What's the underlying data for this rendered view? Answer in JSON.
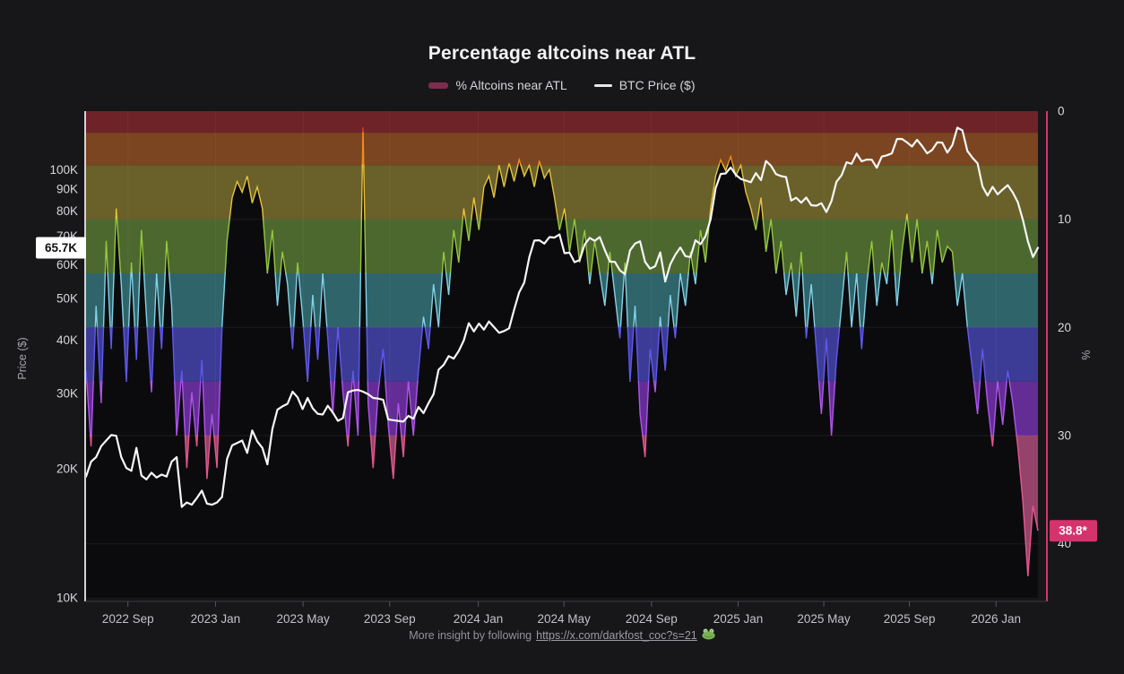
{
  "title": "Percentage altcoins near ATL",
  "legend": [
    {
      "label": "% Altcoins near ATL",
      "swatch_color": "#7e2d4e"
    },
    {
      "label": "BTC Price ($)",
      "swatch_color": "#e8e8ea"
    }
  ],
  "footer": {
    "prefix": "More insight by following",
    "link_text": "https://x.com/darkfost_coc?s=21",
    "emoji": "frog"
  },
  "axes": {
    "left": {
      "title": "Price ($)",
      "scale": "log",
      "ticks": [
        {
          "label": "100K",
          "value": 100
        },
        {
          "label": "90K",
          "value": 90
        },
        {
          "label": "80K",
          "value": 80
        },
        {
          "label": "70K",
          "value": 70
        },
        {
          "label": "60K",
          "value": 60
        },
        {
          "label": "50K",
          "value": 50
        },
        {
          "label": "40K",
          "value": 40
        },
        {
          "label": "30K",
          "value": 30
        },
        {
          "label": "20K",
          "value": 20
        },
        {
          "label": "10K",
          "value": 10
        }
      ],
      "current": {
        "label": "65.7K",
        "value": 65.7
      }
    },
    "right": {
      "title": "%",
      "inverted": true,
      "ticks": [
        {
          "label": "0",
          "value": 0
        },
        {
          "label": "10",
          "value": 10
        },
        {
          "label": "20",
          "value": 20
        },
        {
          "label": "30",
          "value": 30
        },
        {
          "label": "40",
          "value": 40
        }
      ],
      "current": {
        "label": "38.8*",
        "value": 38.8
      }
    }
  },
  "colors": {
    "page_bg": "#17171a",
    "area_fill": "#0b0b0e",
    "btc_line": "#f7f7f7",
    "accent_pink": "#d6336c",
    "left_axis_line": "#d2d2d7",
    "bottom_axis_line": "#3a3a40",
    "grid": "rgba(255,255,255,0.07)",
    "vgrid": "rgba(255,255,255,0.045)",
    "current_price_box_bg": "#ffffff",
    "current_price_box_text": "#111114",
    "current_pct_box_text": "#ffffff"
  },
  "chart_data": {
    "type": "area+line",
    "x_start": "2022 Jul",
    "x_end": "2026 Feb",
    "resolution": "weekly (approximate)",
    "x_ticks": [
      {
        "label": "2022 Sep",
        "pos": 0.044
      },
      {
        "label": "2023 Jan",
        "pos": 0.136
      },
      {
        "label": "2023 May",
        "pos": 0.228
      },
      {
        "label": "2023 Sep",
        "pos": 0.319
      },
      {
        "label": "2024 Jan",
        "pos": 0.412
      },
      {
        "label": "2024 May",
        "pos": 0.502
      },
      {
        "label": "2024 Sep",
        "pos": 0.594
      },
      {
        "label": "2025 Jan",
        "pos": 0.685
      },
      {
        "label": "2025 May",
        "pos": 0.775
      },
      {
        "label": "2025 Sep",
        "pos": 0.865
      },
      {
        "label": "2026 Jan",
        "pos": 0.956
      }
    ],
    "right_axis_range_pct": [
      0,
      45
    ],
    "left_axis_range_usd_k": [
      10,
      137
    ],
    "bands_pct": [
      {
        "name": "red",
        "from": 0,
        "to": 2,
        "fill": "#6e2329",
        "stroke": "#e03a3a"
      },
      {
        "name": "orange",
        "from": 2,
        "to": 5,
        "fill": "#7a4520",
        "stroke": "#f08c1e"
      },
      {
        "name": "olive",
        "from": 5,
        "to": 10,
        "fill": "#6a602a",
        "stroke": "#e5c33c"
      },
      {
        "name": "green",
        "from": 10,
        "to": 15,
        "fill": "#4c682e",
        "stroke": "#96c83c"
      },
      {
        "name": "teal",
        "from": 15,
        "to": 20,
        "fill": "#2f646a",
        "stroke": "#82d2e6"
      },
      {
        "name": "indigo",
        "from": 20,
        "to": 25,
        "fill": "#3c3c96",
        "stroke": "#6058f0"
      },
      {
        "name": "purple",
        "from": 25,
        "to": 30,
        "fill": "#642d96",
        "stroke": "#b054ee"
      },
      {
        "name": "magenta",
        "from": 30,
        "to": 45,
        "fill": "#95436a",
        "stroke": "#e6568e"
      }
    ],
    "series": [
      {
        "name": "% Altcoins near ATL",
        "axis": "right",
        "unit": "%",
        "current": 38.8,
        "values": [
          24,
          31,
          18,
          27,
          12,
          22,
          9,
          16,
          25,
          14,
          23,
          11,
          19,
          26,
          15,
          22,
          12,
          18,
          30,
          24,
          33,
          26,
          31,
          23,
          34,
          28,
          33,
          20,
          12,
          8,
          6.5,
          7.5,
          6,
          8.5,
          7,
          9,
          15,
          11,
          18,
          13,
          16,
          22,
          14,
          19,
          25,
          17,
          23,
          15,
          21,
          28,
          20,
          26,
          31,
          24,
          30,
          1.5,
          27,
          33,
          26,
          22,
          29,
          34,
          27,
          32,
          25,
          30,
          24,
          19,
          22,
          16,
          20,
          13,
          17,
          11,
          14,
          9,
          12,
          8,
          11,
          7,
          6,
          8,
          5,
          7,
          4.8,
          6.5,
          4.5,
          6,
          5,
          7,
          4.6,
          6.2,
          5.4,
          8,
          11,
          9,
          13,
          10,
          14,
          11,
          16,
          12,
          15,
          18,
          13,
          17,
          21,
          14,
          25,
          18,
          28,
          32,
          22,
          26,
          19,
          24,
          17,
          21,
          15,
          18,
          13,
          16,
          11,
          14,
          9,
          6,
          4.5,
          5.5,
          4.2,
          6,
          5,
          7.5,
          9,
          11,
          8,
          13,
          10,
          15,
          12,
          17,
          14,
          19,
          13,
          21,
          16,
          22,
          28,
          21,
          30,
          23,
          18,
          13,
          20,
          15,
          22,
          16,
          12,
          18,
          14,
          16,
          11,
          18,
          13,
          9.5,
          14,
          10,
          15,
          12,
          16,
          11,
          14,
          12.5,
          13,
          18,
          15,
          20,
          24,
          28,
          22,
          27,
          31,
          25,
          29,
          24,
          27,
          31,
          36,
          43,
          36.5,
          38.8
        ]
      },
      {
        "name": "BTC Price ($)",
        "axis": "left",
        "unit": "USD (thousands)",
        "scale": "log",
        "current": 65.7,
        "values": [
          19.2,
          20.8,
          21.3,
          22.6,
          23.3,
          24.0,
          23.9,
          21.3,
          20.1,
          19.8,
          22.4,
          19.3,
          18.9,
          19.6,
          19.1,
          19.4,
          19.2,
          20.8,
          21.3,
          16.3,
          16.7,
          16.5,
          17.1,
          17.8,
          16.6,
          16.5,
          16.7,
          17.2,
          21.1,
          22.7,
          23.0,
          23.3,
          21.8,
          24.6,
          23.2,
          22.4,
          20.5,
          24.8,
          27.5,
          28.0,
          28.4,
          30.3,
          29.4,
          27.6,
          29.3,
          27.7,
          26.9,
          26.8,
          28.1,
          27.1,
          25.9,
          26.3,
          30.2,
          30.5,
          30.6,
          30.3,
          29.9,
          29.3,
          29.2,
          29.0,
          26.1,
          26.0,
          25.9,
          25.8,
          26.6,
          26.2,
          27.9,
          27.0,
          28.5,
          29.9,
          34.1,
          35.0,
          36.7,
          36.2,
          37.7,
          39.9,
          43.8,
          41.9,
          43.7,
          42.3,
          44.2,
          42.9,
          41.6,
          42.0,
          42.6,
          47.1,
          51.7,
          54.5,
          62.4,
          68.3,
          68.4,
          67.2,
          69.6,
          69.4,
          70.6,
          63.8,
          64.0,
          60.8,
          61.5,
          66.9,
          69.3,
          68.2,
          69.6,
          64.9,
          61.0,
          60.9,
          58.2,
          57.0,
          64.8,
          67.2,
          68.0,
          60.9,
          58.7,
          59.5,
          64.1,
          54.8,
          60.1,
          63.3,
          65.8,
          62.8,
          62.5,
          68.4,
          67.0,
          69.9,
          76.6,
          90.5,
          97.7,
          98.0,
          101.2,
          97.3,
          95.1,
          94.3,
          93.5,
          98.2,
          94.5,
          104.8,
          102.1,
          97.6,
          96.6,
          96.1,
          84.7,
          86.0,
          83.7,
          86.1,
          82.6,
          82.4,
          83.5,
          79.6,
          84.4,
          93.7,
          97.0,
          104.1,
          103.2,
          109.0,
          104.6,
          105.6,
          105.5,
          101.0,
          107.3,
          108.0,
          109.2,
          117.9,
          118.0,
          115.8,
          113.3,
          117.4,
          113.5,
          109.2,
          111.2,
          115.8,
          115.7,
          109.6,
          114.1,
          125.4,
          123.5,
          110.5,
          106.6,
          103.5,
          91.3,
          87.0,
          91.2,
          87.6,
          89.9,
          92.0,
          88.5,
          84.0,
          76.5,
          68.0,
          62.5,
          65.7
        ]
      }
    ]
  }
}
